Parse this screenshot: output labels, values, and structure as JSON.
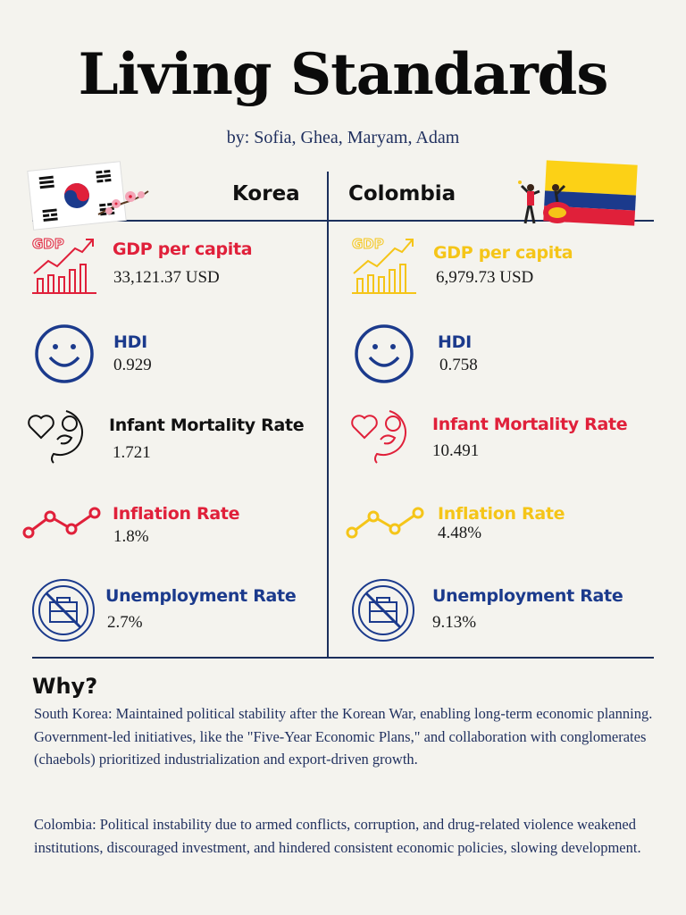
{
  "title": "Living Standards",
  "byline": "by: Sofia, Ghea, Maryam, Adam",
  "colors": {
    "red": "#e0203a",
    "yellow": "#f5c518",
    "navy": "#1b3a8c",
    "line": "#1b2f5c"
  },
  "korea": {
    "name": "Korea",
    "metrics": [
      {
        "label": "GDP per capita",
        "value": "33,121.37 USD",
        "icon": "gdp-chart-icon"
      },
      {
        "label": "HDI",
        "value": "0.929",
        "icon": "smiley-icon"
      },
      {
        "label": "Infant Mortality Rate",
        "value": "1.721",
        "icon": "baby-heart-icon"
      },
      {
        "label": "Inflation Rate",
        "value": "1.8%",
        "icon": "line-graph-icon"
      },
      {
        "label": "Unemployment Rate",
        "value": "2.7%",
        "icon": "no-briefcase-icon"
      }
    ]
  },
  "colombia": {
    "name": "Colombia",
    "metrics": [
      {
        "label": "GDP per capita",
        "value": "6,979.73 USD",
        "icon": "gdp-chart-icon"
      },
      {
        "label": "HDI",
        "value": "0.758",
        "icon": "smiley-icon"
      },
      {
        "label": "Infant Mortality Rate",
        "value": "10.491",
        "icon": "baby-heart-icon"
      },
      {
        "label": "Inflation Rate",
        "value": "4.48%",
        "icon": "line-graph-icon"
      },
      {
        "label": "Unemployment Rate",
        "value": "9.13%",
        "icon": "no-briefcase-icon"
      }
    ]
  },
  "why": {
    "heading": "Why?",
    "korea_text": "South Korea: Maintained political stability after the Korean War, enabling long-term economic planning. Government-led initiatives, like the \"Five-Year Economic Plans,\" and collaboration with conglomerates (chaebols) prioritized industrialization and export-driven growth.",
    "colombia_text": "Colombia: Political instability due to armed conflicts, corruption, and drug-related violence weakened institutions, discouraged investment, and hindered consistent economic policies, slowing development."
  }
}
